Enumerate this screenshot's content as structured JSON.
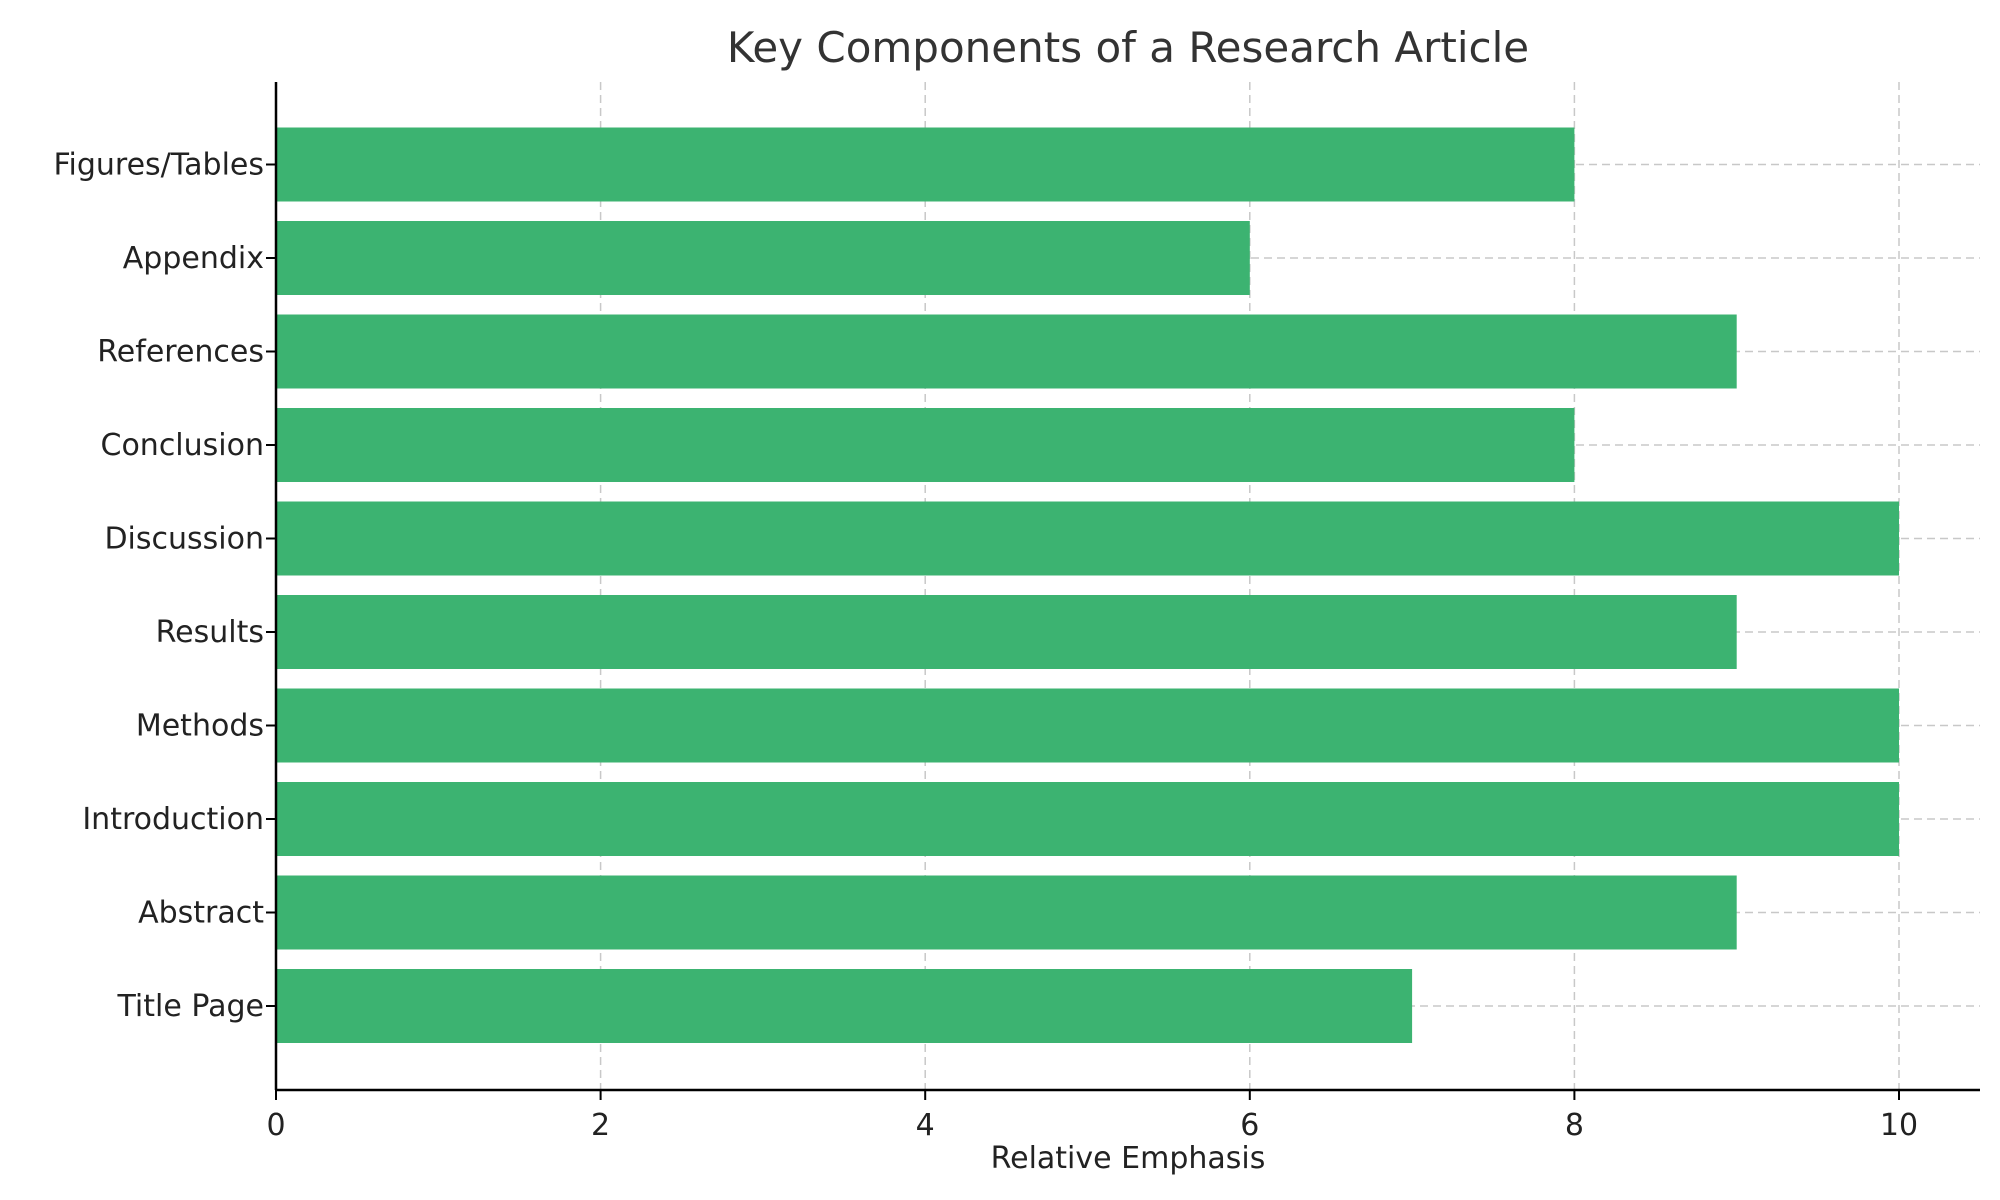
{
  "chart_data": {
    "type": "bar",
    "orientation": "horizontal",
    "title": "Key Components of a Research Article",
    "xlabel": "Relative Emphasis",
    "ylabel": "",
    "categories": [
      "Title Page",
      "Abstract",
      "Introduction",
      "Methods",
      "Results",
      "Discussion",
      "Conclusion",
      "References",
      "Appendix",
      "Figures/Tables"
    ],
    "values": [
      7,
      9,
      10,
      10,
      9,
      10,
      8,
      9,
      6,
      8
    ],
    "xlim": [
      0,
      10.5
    ],
    "xticks": [
      0,
      2,
      4,
      6,
      8,
      10
    ],
    "grid": true,
    "colors": {
      "bar": "#3cb371"
    }
  }
}
